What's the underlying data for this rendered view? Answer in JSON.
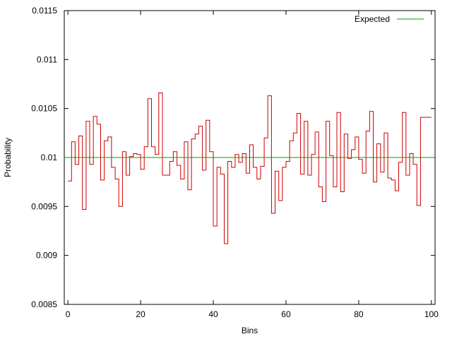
{
  "chart_data": {
    "type": "line",
    "title": "",
    "xlabel": "Bins",
    "ylabel": "Probability",
    "xlim": [
      -1,
      101
    ],
    "ylim": [
      0.0085,
      0.0115
    ],
    "x_ticks": [
      0,
      20,
      40,
      60,
      80,
      100
    ],
    "y_ticks": [
      "0.0085",
      "0.009",
      "0.0095",
      "0.01",
      "0.0105",
      "0.011",
      "0.0115"
    ],
    "grid": false,
    "legend_position": "top-right",
    "series": [
      {
        "name": "Expected",
        "style": "horizontal-line",
        "color": "#00a000",
        "value": 0.01
      },
      {
        "style": "step",
        "color": "#cc0000",
        "x": [
          0,
          1,
          2,
          3,
          4,
          5,
          6,
          7,
          8,
          9,
          10,
          11,
          12,
          13,
          14,
          15,
          16,
          17,
          18,
          19,
          20,
          21,
          22,
          23,
          24,
          25,
          26,
          27,
          28,
          29,
          30,
          31,
          32,
          33,
          34,
          35,
          36,
          37,
          38,
          39,
          40,
          41,
          42,
          43,
          44,
          45,
          46,
          47,
          48,
          49,
          50,
          51,
          52,
          53,
          54,
          55,
          56,
          57,
          58,
          59,
          60,
          61,
          62,
          63,
          64,
          65,
          66,
          67,
          68,
          69,
          70,
          71,
          72,
          73,
          74,
          75,
          76,
          77,
          78,
          79,
          80,
          81,
          82,
          83,
          84,
          85,
          86,
          87,
          88,
          89,
          90,
          91,
          92,
          93,
          94,
          95,
          96,
          97,
          98,
          99
        ],
        "values": [
          0.00976,
          0.01016,
          0.00993,
          0.01022,
          0.00947,
          0.01037,
          0.00993,
          0.01042,
          0.01034,
          0.00977,
          0.01017,
          0.01021,
          0.0099,
          0.00978,
          0.0095,
          0.01006,
          0.00982,
          0.01001,
          0.01004,
          0.01003,
          0.00988,
          0.01011,
          0.0106,
          0.01011,
          0.01003,
          0.01066,
          0.00982,
          0.00982,
          0.00996,
          0.01006,
          0.00992,
          0.00978,
          0.01016,
          0.00967,
          0.01019,
          0.01024,
          0.01032,
          0.00987,
          0.01038,
          0.01006,
          0.0093,
          0.0099,
          0.00983,
          0.00912,
          0.00996,
          0.0099,
          0.01003,
          0.00995,
          0.01004,
          0.00984,
          0.01013,
          0.0099,
          0.00978,
          0.00991,
          0.0102,
          0.01063,
          0.00943,
          0.00986,
          0.00956,
          0.0099,
          0.00996,
          0.01017,
          0.01025,
          0.01045,
          0.00983,
          0.01037,
          0.00982,
          0.01003,
          0.01026,
          0.0097,
          0.00955,
          0.01037,
          0.01002,
          0.0097,
          0.01046,
          0.00965,
          0.01024,
          0.00999,
          0.01008,
          0.01021,
          0.00998,
          0.00984,
          0.01027,
          0.01047,
          0.00975,
          0.01014,
          0.00985,
          0.01025,
          0.00979,
          0.00977,
          0.00966,
          0.00995,
          0.01046,
          0.00982,
          0.01004,
          0.00993,
          0.00951,
          0.01041,
          0.01041,
          0.01041
        ]
      }
    ]
  }
}
